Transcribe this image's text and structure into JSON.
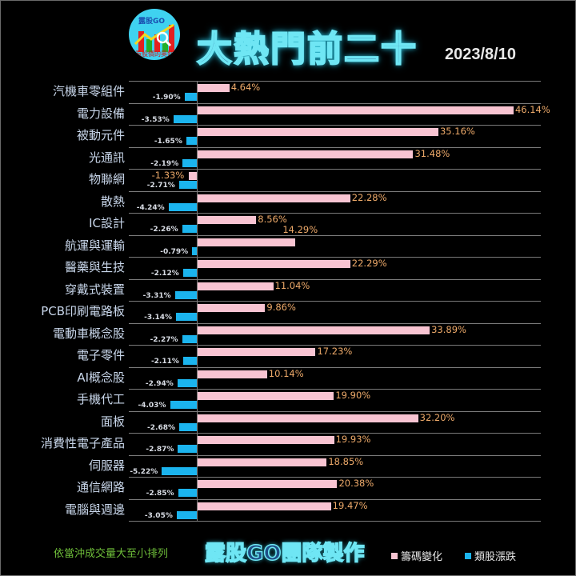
{
  "header": {
    "logo_text": "露股GO",
    "logo_subtext": "看股價的奧妙",
    "title": "大熱門前二十",
    "date": "2023/8/10"
  },
  "footer": {
    "note": "依當沖成交量大至小排列",
    "team": "露股GO團隊製作",
    "legend": [
      {
        "label": "籌碼變化",
        "color": "#f8c4d2"
      },
      {
        "label": "類股漲跌",
        "color": "#1bb4ee"
      }
    ]
  },
  "colors": {
    "background": "#000000",
    "chip_change": "#f8c4d2",
    "sector_change": "#1bb4ee",
    "chip_label": "#eeaa6a",
    "title_fill": "#1f4e86",
    "title_glow": "#6fe6f4"
  },
  "chart_data": {
    "type": "bar",
    "orientation": "horizontal",
    "title": "大熱門前二十",
    "subtitle": "2023/8/10",
    "categories": [
      "汽機車零組件",
      "電力設備",
      "被動元件",
      "光通訊",
      "物聯網",
      "散熱",
      "IC設計",
      "航運與運輸",
      "醫藥與生技",
      "穿戴式裝置",
      "PCB印刷電路板",
      "電動車概念股",
      "電子零件",
      "AI概念股",
      "手機代工",
      "面板",
      "消費性電子產品",
      "伺服器",
      "通信網路",
      "電腦與週邊"
    ],
    "series": [
      {
        "name": "籌碼變化",
        "color": "#f8c4d2",
        "values": [
          4.64,
          46.14,
          35.16,
          31.48,
          -1.33,
          22.28,
          8.56,
          14.29,
          22.29,
          11.04,
          9.86,
          33.89,
          17.23,
          10.14,
          19.9,
          32.2,
          19.93,
          18.85,
          20.38,
          19.47
        ],
        "labels": [
          "4.64%",
          "46.14%",
          "35.16%",
          "31.48%",
          "-1.33%",
          "22.28%",
          "8.56%",
          "14.29%",
          "22.29%",
          "11.04%",
          "9.86%",
          "33.89%",
          "17.23%",
          "10.14%",
          "19.90%",
          "32.20%",
          "19.93%",
          "18.85%",
          "20.38%",
          "19.47%"
        ]
      },
      {
        "name": "類股漲跌",
        "color": "#1bb4ee",
        "values": [
          -1.9,
          -3.53,
          -1.65,
          -2.19,
          -2.71,
          -4.24,
          -2.26,
          -0.79,
          -2.12,
          -3.31,
          -3.14,
          -2.27,
          -2.11,
          -2.94,
          -4.03,
          -2.68,
          -2.87,
          -5.22,
          -2.85,
          -3.05
        ],
        "labels": [
          "-1.90%",
          "-3.53%",
          "-1.65%",
          "-2.19%",
          "-2.71%",
          "-4.24%",
          "-2.26%",
          "-0.79%",
          "-2.12%",
          "-3.31%",
          "-3.14%",
          "-2.27%",
          "-2.11%",
          "-2.94%",
          "-4.03%",
          "-2.68%",
          "-2.87%",
          "-5.22%",
          "-2.85%",
          "-3.05%"
        ]
      }
    ],
    "xlabel": "",
    "ylabel": "",
    "xlim": [
      -10,
      50
    ],
    "grid": true,
    "legend_position": "bottom",
    "annotation": "依當沖成交量大至小排列"
  }
}
